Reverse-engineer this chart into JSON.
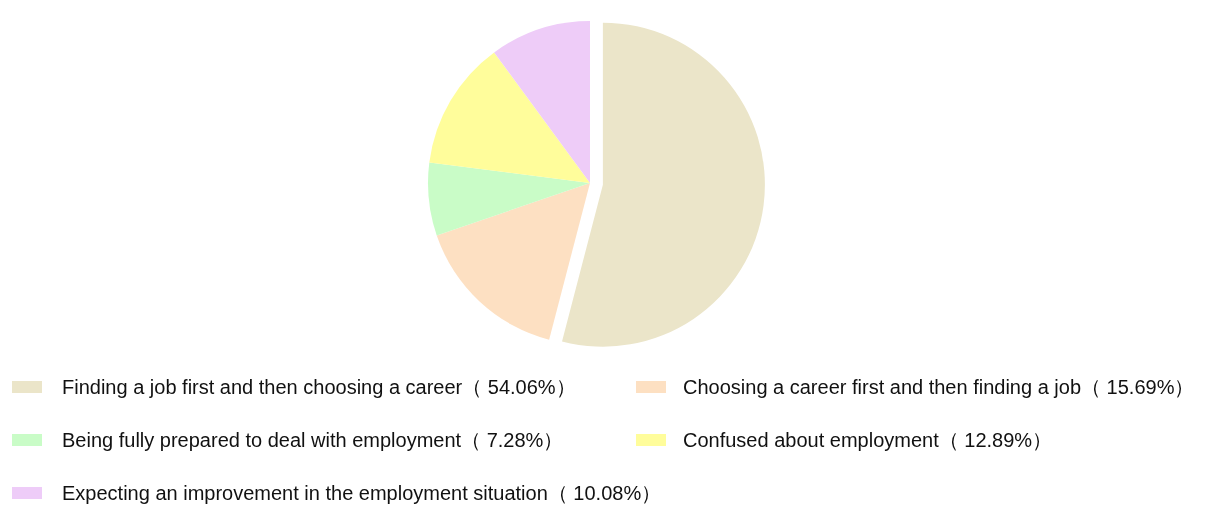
{
  "chart_data": {
    "type": "pie",
    "legend": "bottom",
    "categories": [
      "Finding a job first and then choosing a career",
      "Choosing a career first and then finding a job",
      "Being fully prepared to deal with employment",
      "Confused about employment",
      "Expecting an improvement in the employment situation"
    ],
    "values": [
      54.06,
      15.69,
      7.28,
      12.89,
      10.08
    ],
    "value_labels": [
      "（ 54.06%）",
      "（ 15.69%）",
      "（ 7.28%）",
      "（ 12.89%）",
      "（ 10.08%）"
    ],
    "colors": [
      "#ebe5c9",
      "#fde0c2",
      "#c9fcc7",
      "#fffd9b",
      "#eeccf8"
    ]
  }
}
